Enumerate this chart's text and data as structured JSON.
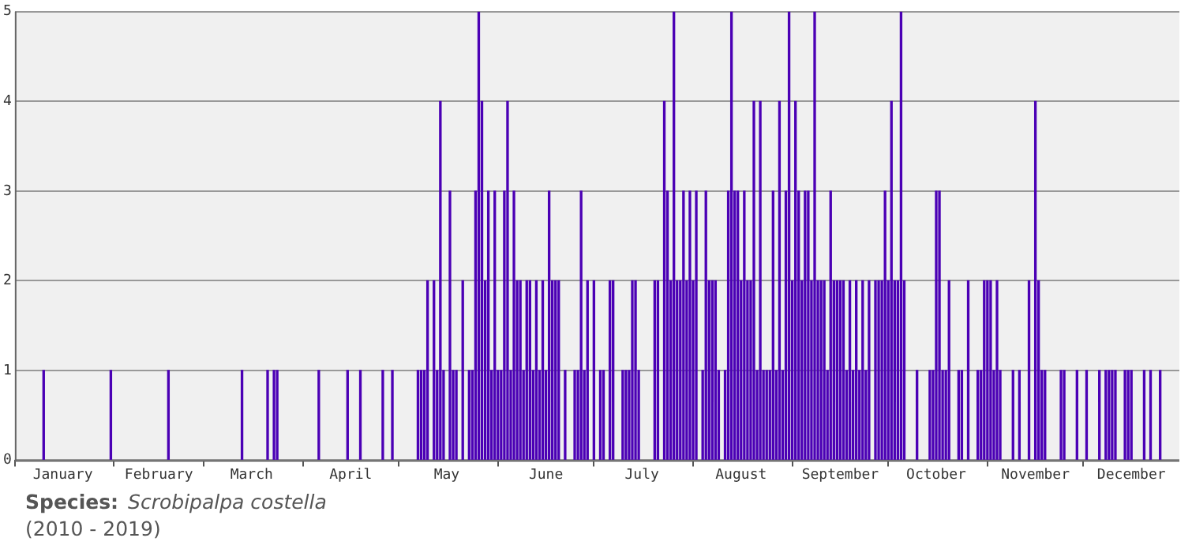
{
  "chart_data": {
    "type": "bar",
    "annotations": [
      "Species:",
      "Scrobipalpa costella",
      "(2010 - 2019)"
    ],
    "color": "#4b00b5",
    "grid": "y",
    "xlim": [
      "--01-01",
      "--12-31"
    ],
    "xticks": [
      {
        "value": "--01-01",
        "label": null
      },
      {
        "value": "--01-16",
        "label": "January"
      },
      {
        "value": "--02-01",
        "label": null
      },
      {
        "value": "--02-15",
        "label": "February"
      },
      {
        "value": "--03-01",
        "label": null
      },
      {
        "value": "--03-16",
        "label": "March"
      },
      {
        "value": "--04-01",
        "label": null
      },
      {
        "value": "--04-16",
        "label": "April"
      },
      {
        "value": "--05-01",
        "label": null
      },
      {
        "value": "--05-16",
        "label": "May"
      },
      {
        "value": "--06-01",
        "label": null
      },
      {
        "value": "--06-16",
        "label": "June"
      },
      {
        "value": "--07-01",
        "label": null
      },
      {
        "value": "--07-16",
        "label": "July"
      },
      {
        "value": "--08-01",
        "label": null
      },
      {
        "value": "--08-16",
        "label": "August"
      },
      {
        "value": "--09-01",
        "label": null
      },
      {
        "value": "--09-16",
        "label": "September"
      },
      {
        "value": "--10-01",
        "label": null
      },
      {
        "value": "--10-16",
        "label": "October"
      },
      {
        "value": "--11-01",
        "label": null
      },
      {
        "value": "--11-16",
        "label": "November"
      },
      {
        "value": "--12-01",
        "label": null
      },
      {
        "value": "--12-16",
        "label": "December"
      }
    ],
    "ylim": [
      0,
      5
    ],
    "yticks": [
      0,
      1,
      2,
      3,
      4,
      5
    ],
    "x": [
      "--01-10",
      "--01-31",
      "--02-18",
      "--03-13",
      "--03-21",
      "--03-23",
      "--03-24",
      "--04-06",
      "--04-15",
      "--04-19",
      "--04-26",
      "--04-29",
      "--05-07",
      "--05-08",
      "--05-09",
      "--05-10",
      "--05-12",
      "--05-13",
      "--05-14",
      "--05-15",
      "--05-17",
      "--05-18",
      "--05-19",
      "--05-21",
      "--05-23",
      "--05-24",
      "--05-25",
      "--05-26",
      "--05-27",
      "--05-28",
      "--05-29",
      "--05-30",
      "--05-31",
      "--06-01",
      "--06-02",
      "--06-03",
      "--06-04",
      "--06-05",
      "--06-06",
      "--06-07",
      "--06-08",
      "--06-09",
      "--06-10",
      "--06-11",
      "--06-12",
      "--06-13",
      "--06-14",
      "--06-15",
      "--06-16",
      "--06-17",
      "--06-18",
      "--06-19",
      "--06-20",
      "--06-22",
      "--06-25",
      "--06-26",
      "--06-27",
      "--06-28",
      "--06-29",
      "--07-01",
      "--07-03",
      "--07-04",
      "--07-06",
      "--07-07",
      "--07-10",
      "--07-11",
      "--07-12",
      "--07-13",
      "--07-14",
      "--07-15",
      "--07-20",
      "--07-21",
      "--07-23",
      "--07-24",
      "--07-25",
      "--07-26",
      "--07-27",
      "--07-28",
      "--07-29",
      "--07-30",
      "--07-31",
      "--08-01",
      "--08-02",
      "--08-04",
      "--08-05",
      "--08-06",
      "--08-07",
      "--08-08",
      "--08-09",
      "--08-11",
      "--08-12",
      "--08-13",
      "--08-14",
      "--08-15",
      "--08-16",
      "--08-17",
      "--08-18",
      "--08-19",
      "--08-20",
      "--08-21",
      "--08-22",
      "--08-23",
      "--08-24",
      "--08-25",
      "--08-26",
      "--08-27",
      "--08-28",
      "--08-29",
      "--08-30",
      "--08-31",
      "--09-01",
      "--09-02",
      "--09-03",
      "--09-04",
      "--09-05",
      "--09-06",
      "--09-07",
      "--09-08",
      "--09-09",
      "--09-10",
      "--09-11",
      "--09-12",
      "--09-13",
      "--09-14",
      "--09-15",
      "--09-16",
      "--09-17",
      "--09-18",
      "--09-19",
      "--09-20",
      "--09-21",
      "--09-22",
      "--09-23",
      "--09-24",
      "--09-25",
      "--09-27",
      "--09-28",
      "--09-29",
      "--09-30",
      "--10-01",
      "--10-02",
      "--10-03",
      "--10-04",
      "--10-05",
      "--10-06",
      "--10-10",
      "--10-14",
      "--10-15",
      "--10-16",
      "--10-17",
      "--10-18",
      "--10-19",
      "--10-20",
      "--10-23",
      "--10-24",
      "--10-26",
      "--10-29",
      "--10-30",
      "--10-31",
      "--11-01",
      "--11-02",
      "--11-03",
      "--11-04",
      "--11-05",
      "--11-09",
      "--11-11",
      "--11-14",
      "--11-16",
      "--11-17",
      "--11-18",
      "--11-19",
      "--11-24",
      "--11-25",
      "--11-29",
      "--12-02",
      "--12-06",
      "--12-08",
      "--12-09",
      "--12-10",
      "--12-11",
      "--12-14",
      "--12-15",
      "--12-16",
      "--12-20",
      "--12-22",
      "--12-25"
    ],
    "values": [
      1,
      1,
      1,
      1,
      1,
      1,
      1,
      1,
      1,
      1,
      1,
      1,
      1,
      1,
      1,
      2,
      2,
      1,
      4,
      1,
      3,
      1,
      1,
      2,
      1,
      1,
      3,
      5,
      4,
      2,
      3,
      1,
      3,
      1,
      1,
      3,
      4,
      1,
      3,
      2,
      2,
      1,
      2,
      2,
      1,
      2,
      1,
      2,
      1,
      3,
      2,
      2,
      2,
      1,
      1,
      1,
      3,
      1,
      2,
      2,
      1,
      1,
      2,
      2,
      1,
      1,
      1,
      2,
      2,
      1,
      2,
      2,
      4,
      3,
      2,
      5,
      2,
      2,
      3,
      2,
      3,
      2,
      3,
      1,
      3,
      2,
      2,
      2,
      1,
      1,
      3,
      5,
      3,
      3,
      2,
      3,
      2,
      2,
      4,
      1,
      4,
      1,
      1,
      1,
      3,
      1,
      4,
      1,
      3,
      5,
      2,
      4,
      3,
      2,
      3,
      3,
      2,
      5,
      2,
      2,
      2,
      1,
      3,
      2,
      2,
      2,
      2,
      1,
      2,
      1,
      2,
      1,
      2,
      1,
      2,
      2,
      2,
      2,
      3,
      2,
      4,
      2,
      2,
      5,
      2,
      1,
      1,
      1,
      3,
      3,
      1,
      1,
      2,
      1,
      1,
      2,
      1,
      1,
      2,
      2,
      2,
      1,
      2,
      1,
      1,
      1,
      2,
      4,
      2,
      1,
      1,
      1,
      1,
      1,
      1,
      1,
      1,
      1,
      1,
      1,
      1,
      1,
      1,
      1,
      1,
      1
    ]
  }
}
